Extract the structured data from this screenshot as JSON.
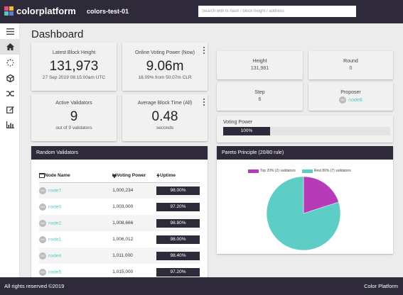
{
  "app": {
    "brand": "colorplatform",
    "chain": "colors-test-01"
  },
  "search": {
    "placeholder": "Search with tx hash / block height / address"
  },
  "colors": {
    "header": "#2f2a3a",
    "accent": "#4fc6bf",
    "purple": "#b53bb8"
  },
  "sidebar": {
    "items": [
      "menu-icon",
      "home-icon",
      "spinner-icon",
      "cube-icon",
      "shuffle-icon",
      "edit-icon",
      "chart-icon"
    ]
  },
  "page": {
    "title": "Dashboard"
  },
  "cards": {
    "latest_block": {
      "label": "Latest Block Height",
      "value": "131,973",
      "sub": "27 Sep 2019 08:15:00am UTC"
    },
    "voting_power": {
      "label": "Online Voting Power (Now)",
      "value": "9.06m",
      "sub": "18.09% from 50.07m CLR"
    },
    "validators": {
      "label": "Active Validators",
      "value": "9",
      "sub": "out of 9 validators"
    },
    "block_time": {
      "label": "Average Block Time (All)",
      "value": "0.48",
      "sub": "seconds"
    }
  },
  "consensus": {
    "height": {
      "label": "Height",
      "value": "131,981"
    },
    "round": {
      "label": "Round",
      "value": "0"
    },
    "step": {
      "label": "Step",
      "value": "6"
    },
    "proposer": {
      "label": "Proposer",
      "value": "node8",
      "avatar": "NO"
    },
    "voting_power": {
      "label": "Voting Power",
      "value": "100%",
      "percent": 100
    }
  },
  "random_validators": {
    "title": "Random Validators",
    "headers": [
      "Node Name",
      "Voting Power",
      "Uptime"
    ],
    "rows": [
      {
        "avatar": "NO",
        "name": "node7",
        "power": "1,000,234",
        "uptime": "98.00%"
      },
      {
        "avatar": "NO",
        "name": "node0",
        "power": "1,003,000",
        "uptime": "97.20%"
      },
      {
        "avatar": "NO",
        "name": "node2",
        "power": "1,008,666",
        "uptime": "98.80%"
      },
      {
        "avatar": "NO",
        "name": "node1",
        "power": "1,006,012",
        "uptime": "98.00%"
      },
      {
        "avatar": "NO",
        "name": "node4",
        "power": "1,011,000",
        "uptime": "98.40%"
      },
      {
        "avatar": "NO",
        "name": "node5",
        "power": "1,015,000",
        "uptime": "97.20%"
      }
    ]
  },
  "pareto": {
    "title": "Pareto Principle (20/80 rule)",
    "legend": [
      {
        "label": "Top 20% (2) validators",
        "color": "#b53bb8",
        "percent": 20
      },
      {
        "label": "Rest 80% (7) validators",
        "color": "#5ecdc6",
        "percent": 80
      }
    ]
  },
  "footer": {
    "left": "All rights reserved ©2019",
    "right": "Color Platform"
  }
}
